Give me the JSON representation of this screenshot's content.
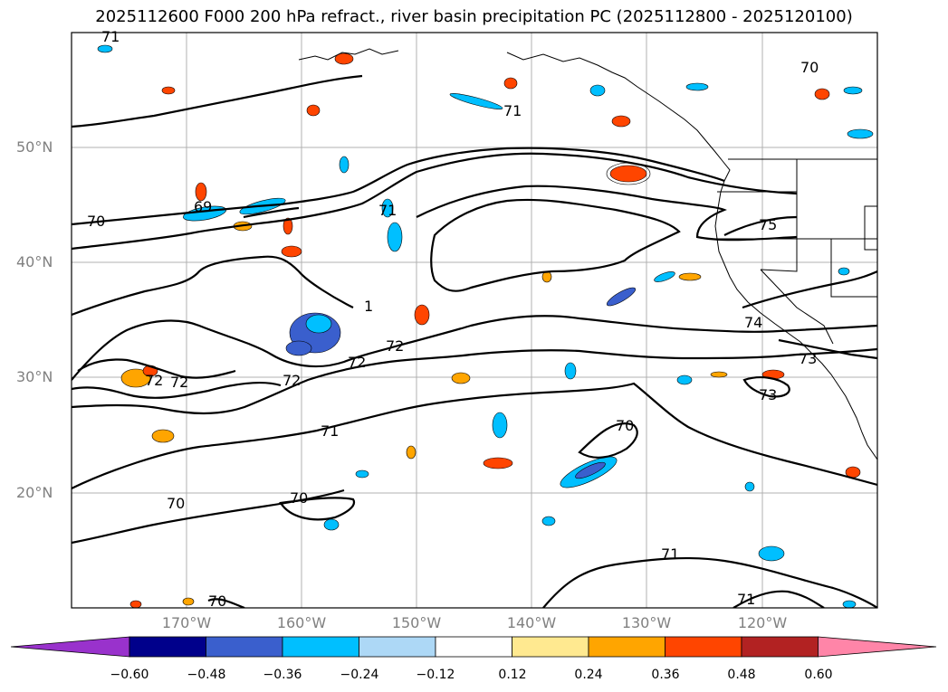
{
  "title": "2025112600 F000 200 hPa refract., river basin precipitation PC (2025112800 - 2025120100)",
  "map": {
    "lat_labels": [
      "50°N",
      "40°N",
      "30°N",
      "20°N"
    ],
    "lon_labels": [
      "170°W",
      "160°W",
      "150°W",
      "140°W",
      "130°W",
      "120°W"
    ],
    "contour_labels": [
      "71",
      "70",
      "70",
      "69",
      "71",
      "71",
      "1",
      "72",
      "72",
      "72",
      "72",
      "72",
      "71",
      "70",
      "70",
      "70",
      "75",
      "74",
      "73",
      "73",
      "70",
      "71",
      "71"
    ]
  },
  "colorbar": {
    "ticks": [
      "−0.60",
      "−0.48",
      "−0.36",
      "−0.24",
      "−0.12",
      "0.12",
      "0.24",
      "0.36",
      "0.48",
      "0.60"
    ],
    "colors": [
      "#9932cc",
      "#00008b",
      "#3a5fcd",
      "#00bfff",
      "#add8f6",
      "#ffffff",
      "#ffe990",
      "#ffa500",
      "#ff4500",
      "#b22222",
      "#ff85a8"
    ]
  }
}
